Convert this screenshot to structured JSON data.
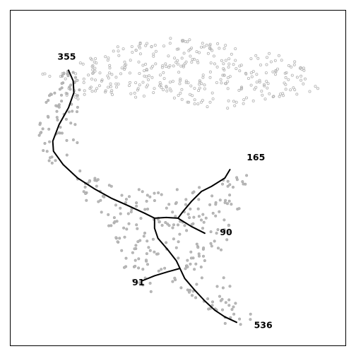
{
  "chart_data": {
    "type": "scatter",
    "title": "",
    "xlabel": "",
    "ylabel": "",
    "xlim": [
      0,
      100
    ],
    "ylim": [
      0,
      100
    ],
    "grid": false,
    "legend": "none",
    "colors": {
      "points": "#b5b5b5",
      "trajectory": "#000000",
      "frame": "#000000"
    },
    "point_groups": [
      {
        "style": "open",
        "n": 360,
        "seed": 11,
        "region": [
          [
            8,
            82
          ],
          [
            14,
            80
          ],
          [
            20,
            85
          ],
          [
            30,
            89
          ],
          [
            40,
            91
          ],
          [
            50,
            92
          ],
          [
            60,
            91
          ],
          [
            70,
            88
          ],
          [
            80,
            87
          ],
          [
            88,
            85
          ],
          [
            93,
            76
          ],
          [
            86,
            75
          ],
          [
            75,
            73
          ],
          [
            65,
            70
          ],
          [
            55,
            72
          ],
          [
            45,
            74
          ],
          [
            35,
            74
          ],
          [
            25,
            75
          ],
          [
            18,
            72
          ],
          [
            12,
            76
          ]
        ]
      },
      {
        "style": "filled",
        "n": 70,
        "seed": 23,
        "region": [
          [
            8,
            63
          ],
          [
            10,
            72
          ],
          [
            14,
            81
          ],
          [
            20,
            83
          ],
          [
            21,
            73
          ],
          [
            20,
            67
          ],
          [
            22,
            60
          ],
          [
            17,
            55
          ],
          [
            11,
            54
          ]
        ]
      },
      {
        "style": "filled",
        "n": 260,
        "seed": 37,
        "region": [
          [
            18,
            55
          ],
          [
            28,
            49
          ],
          [
            42,
            46
          ],
          [
            54,
            47
          ],
          [
            64,
            50
          ],
          [
            72,
            54
          ],
          [
            69,
            41
          ],
          [
            66,
            31
          ],
          [
            60,
            24
          ],
          [
            70,
            15
          ],
          [
            73,
            6
          ],
          [
            63,
            6
          ],
          [
            55,
            13
          ],
          [
            49,
            17
          ],
          [
            39,
            15
          ],
          [
            33,
            22
          ],
          [
            32,
            30
          ],
          [
            28,
            37
          ],
          [
            20,
            45
          ]
        ]
      }
    ],
    "trajectory": [
      {
        "label": "355",
        "points": [
          [
            17.3,
            82.2
          ],
          [
            18.7,
            79
          ],
          [
            18.9,
            75.5
          ],
          [
            17.3,
            71
          ],
          [
            14.5,
            66
          ],
          [
            12.6,
            61
          ],
          [
            12.8,
            58
          ],
          [
            15.7,
            54
          ],
          [
            20,
            50
          ],
          [
            25,
            46.8
          ],
          [
            30,
            44
          ],
          [
            35,
            41.8
          ],
          [
            40,
            39.5
          ],
          [
            43,
            38
          ]
        ]
      },
      {
        "label": "165",
        "points": [
          [
            65.5,
            52.5
          ],
          [
            64,
            50
          ],
          [
            60,
            47.5
          ],
          [
            57,
            46
          ],
          [
            54,
            43
          ],
          [
            51.5,
            40
          ],
          [
            50,
            38
          ]
        ]
      },
      {
        "label": "90",
        "points": [
          [
            50,
            38
          ],
          [
            54,
            35.5
          ],
          [
            58,
            33.5
          ]
        ]
      },
      {
        "label": "91",
        "points": [
          [
            39.3,
            19.3
          ],
          [
            43,
            20.8
          ],
          [
            47,
            22
          ],
          [
            50.6,
            23
          ]
        ]
      },
      {
        "label": "536",
        "points": [
          [
            43,
            38
          ],
          [
            46.5,
            38.2
          ],
          [
            50,
            38
          ]
        ]
      },
      {
        "label": "536",
        "points": [
          [
            43,
            38
          ],
          [
            43,
            35
          ],
          [
            44,
            32
          ],
          [
            47,
            28.5
          ],
          [
            49.5,
            25.3
          ],
          [
            50.6,
            23
          ],
          [
            52,
            20
          ],
          [
            55,
            16.5
          ],
          [
            58,
            13.3
          ],
          [
            61,
            10.5
          ],
          [
            64,
            8.5
          ],
          [
            67.5,
            6.9
          ]
        ]
      }
    ],
    "tip_labels": [
      {
        "text": "355",
        "x": 14,
        "y": 85.3
      },
      {
        "text": "165",
        "x": 70.5,
        "y": 55.3
      },
      {
        "text": "90",
        "x": 62.5,
        "y": 32.9
      },
      {
        "text": "91",
        "x": 36.3,
        "y": 17.9
      },
      {
        "text": "536",
        "x": 72.7,
        "y": 5.2
      }
    ]
  }
}
